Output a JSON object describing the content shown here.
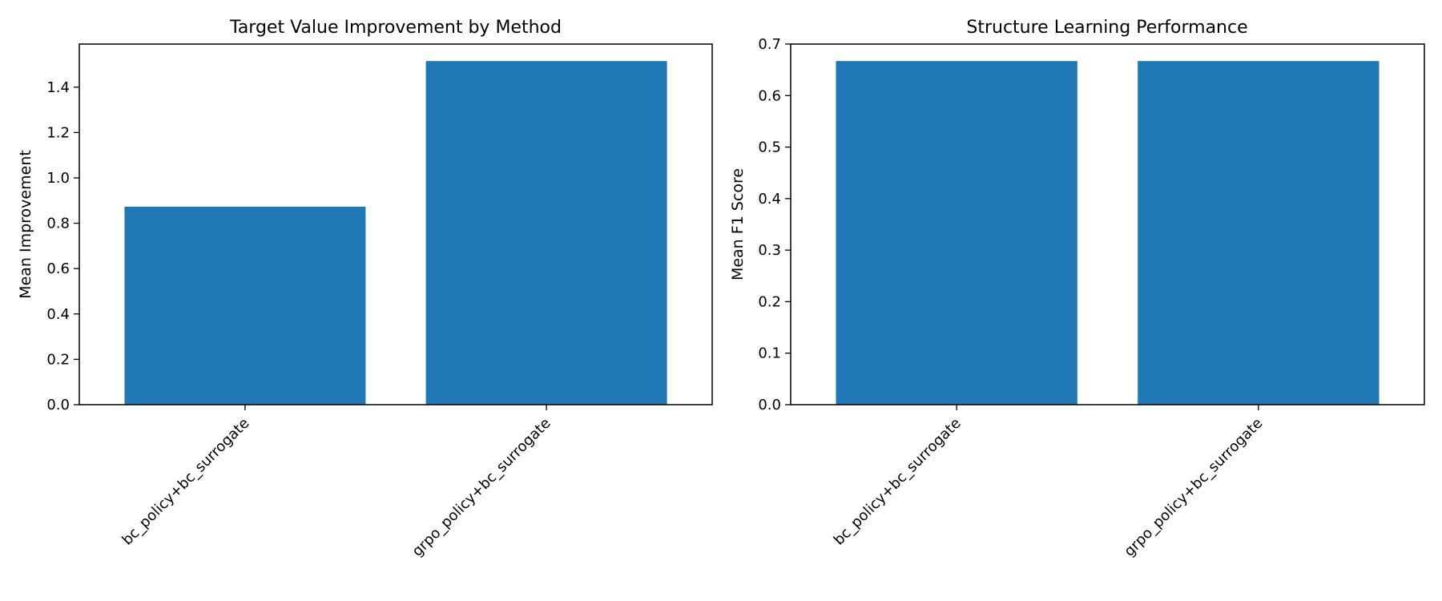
{
  "chart_data": [
    {
      "type": "bar",
      "title": "Target Value Improvement by Method",
      "xlabel": "",
      "ylabel": "Mean Improvement",
      "categories": [
        "bc_policy+bc_surrogate",
        "grpo_policy+bc_surrogate"
      ],
      "values": [
        0.873,
        1.515
      ],
      "ylim": [
        0,
        1.59
      ],
      "yticks": [
        0.0,
        0.2,
        0.4,
        0.6,
        0.8,
        1.0,
        1.2,
        1.4
      ],
      "ytick_labels": [
        "0.0",
        "0.2",
        "0.4",
        "0.6",
        "0.8",
        "1.0",
        "1.2",
        "1.4"
      ],
      "bar_color": "#1f77b4",
      "grid": false,
      "legend": "none"
    },
    {
      "type": "bar",
      "title": "Structure Learning Performance",
      "xlabel": "",
      "ylabel": "Mean F1 Score",
      "categories": [
        "bc_policy+bc_surrogate",
        "grpo_policy+bc_surrogate"
      ],
      "values": [
        0.667,
        0.667
      ],
      "ylim": [
        0,
        0.7
      ],
      "yticks": [
        0.0,
        0.1,
        0.2,
        0.3,
        0.4,
        0.5,
        0.6,
        0.7
      ],
      "ytick_labels": [
        "0.0",
        "0.1",
        "0.2",
        "0.3",
        "0.4",
        "0.5",
        "0.6",
        "0.7"
      ],
      "bar_color": "#1f77b4",
      "grid": false,
      "legend": "none"
    }
  ]
}
